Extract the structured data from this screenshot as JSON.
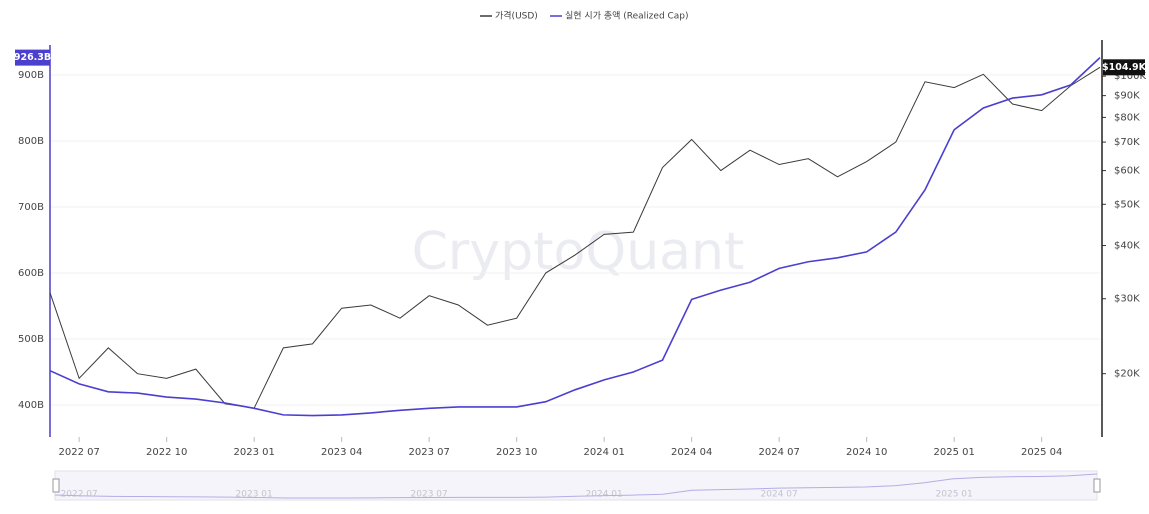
{
  "chart_data": {
    "type": "line",
    "legend_position": "top",
    "watermark": "CryptoQuant",
    "x": [
      "2022-06",
      "2022-07",
      "2022-08",
      "2022-09",
      "2022-10",
      "2022-11",
      "2022-12",
      "2023-01",
      "2023-02",
      "2023-03",
      "2023-04",
      "2023-05",
      "2023-06",
      "2023-07",
      "2023-08",
      "2023-09",
      "2023-10",
      "2023-11",
      "2023-12",
      "2024-01",
      "2024-02",
      "2024-03",
      "2024-04",
      "2024-05",
      "2024-06",
      "2024-07",
      "2024-08",
      "2024-09",
      "2024-10",
      "2024-11",
      "2024-12",
      "2025-01",
      "2025-02",
      "2025-03",
      "2025-04",
      "2025-05",
      "2025-06"
    ],
    "xlim": [
      "2022-06",
      "2025-06"
    ],
    "xticks": [
      "2022 07",
      "2022 10",
      "2023 01",
      "2023 04",
      "2023 07",
      "2023 10",
      "2024 01",
      "2024 04",
      "2024 07",
      "2024 10",
      "2025 01",
      "2025 04"
    ],
    "ylim": [
      351.5,
      953
    ],
    "yticks": [
      {
        "value": 400,
        "label": "400B"
      },
      {
        "value": 500,
        "label": "500B"
      },
      {
        "value": 600,
        "label": "600B"
      },
      {
        "value": 700,
        "label": "700B"
      },
      {
        "value": 800,
        "label": "800B"
      },
      {
        "value": 900,
        "label": "900B"
      }
    ],
    "y2lim": [
      14200,
      121600
    ],
    "y2_log": true,
    "y2ticks": [
      {
        "value": 20000,
        "label": "$20K"
      },
      {
        "value": 30000,
        "label": "$30K"
      },
      {
        "value": 40000,
        "label": "$40K"
      },
      {
        "value": 50000,
        "label": "$50K"
      },
      {
        "value": 60000,
        "label": "$60K"
      },
      {
        "value": 70000,
        "label": "$70K"
      },
      {
        "value": 80000,
        "label": "$80K"
      },
      {
        "value": 90000,
        "label": "$90K"
      },
      {
        "value": 100000,
        "label": "$100K"
      }
    ],
    "series": [
      {
        "name": "가격(USD)",
        "color": "#3a3a3a",
        "axis": "y2",
        "last_label": "$104.9K",
        "values": [
          31000,
          19500,
          23000,
          20000,
          19500,
          20500,
          17000,
          16600,
          23000,
          23500,
          28500,
          29000,
          27000,
          30500,
          29000,
          26000,
          27000,
          34500,
          38000,
          42500,
          43000,
          61000,
          71000,
          60000,
          67000,
          62000,
          64000,
          58000,
          63000,
          70000,
          97000,
          94000,
          101000,
          86000,
          83000,
          95000,
          104900
        ]
      },
      {
        "name": "실현 시가 총액 (Realized Cap)",
        "color": "#4b3fcf",
        "last_label": "926.3B",
        "values": [
          452,
          432,
          420,
          418,
          412,
          409,
          403,
          395,
          385,
          384,
          385,
          388,
          392,
          395,
          397,
          397,
          397,
          405,
          423,
          438,
          450,
          468,
          560,
          574,
          586,
          607,
          617,
          623,
          632,
          662,
          726,
          817,
          850,
          865,
          870,
          885,
          926.3
        ]
      }
    ]
  }
}
